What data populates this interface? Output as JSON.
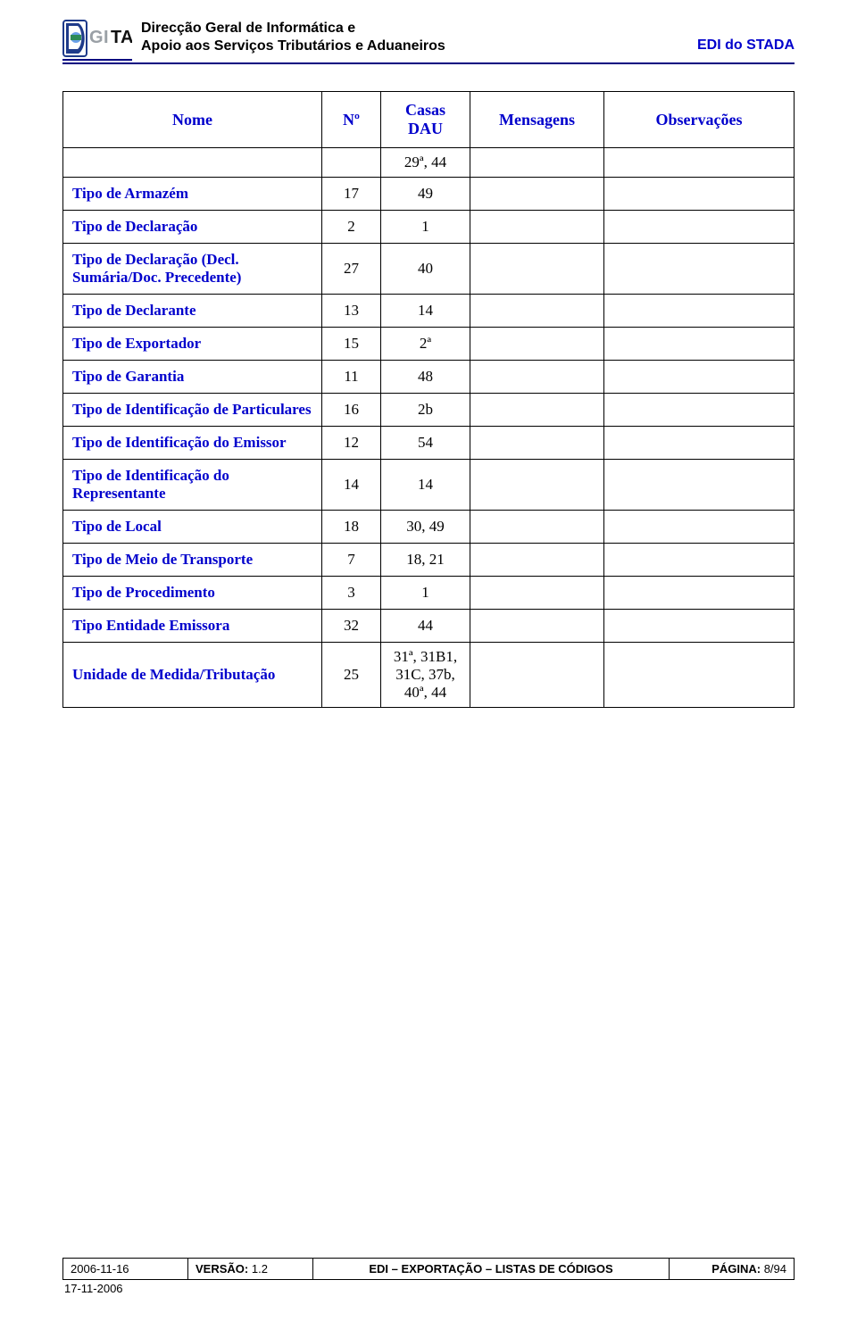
{
  "header": {
    "org_line1": "Direcção Geral de Informática e",
    "org_line2": "Apoio aos Serviços Tributários e Aduaneiros",
    "right": "EDI do STADA",
    "logo": {
      "blue": "#1e3a8a",
      "light_blue": "#6aa0e8",
      "green": "#2e8b57",
      "gray": "#9aa0a6",
      "black": "#111111"
    }
  },
  "table": {
    "headers": {
      "nome": "Nome",
      "no": "Nº",
      "casas": "Casas DAU",
      "mensagens": "Mensagens",
      "obs": "Observações"
    },
    "rows": [
      {
        "nome": "",
        "no": "",
        "casas": "29ª, 44",
        "mens": "",
        "obs": ""
      },
      {
        "nome": "Tipo de Armazém",
        "no": "17",
        "casas": "49",
        "mens": "",
        "obs": ""
      },
      {
        "nome": "Tipo de Declaração",
        "no": "2",
        "casas": "1",
        "mens": "",
        "obs": ""
      },
      {
        "nome": "Tipo de Declaração (Decl. Sumária/Doc. Precedente)",
        "no": "27",
        "casas": "40",
        "mens": "",
        "obs": ""
      },
      {
        "nome": "Tipo de Declarante",
        "no": "13",
        "casas": "14",
        "mens": "",
        "obs": ""
      },
      {
        "nome": "Tipo de Exportador",
        "no": "15",
        "casas": "2ª",
        "mens": "",
        "obs": ""
      },
      {
        "nome": "Tipo de Garantia",
        "no": "11",
        "casas": "48",
        "mens": "",
        "obs": ""
      },
      {
        "nome": "Tipo de Identificação de Particulares",
        "no": "16",
        "casas": "2b",
        "mens": "",
        "obs": ""
      },
      {
        "nome": "Tipo de Identificação do Emissor",
        "no": "12",
        "casas": "54",
        "mens": "",
        "obs": ""
      },
      {
        "nome": "Tipo de Identificação do Representante",
        "no": "14",
        "casas": "14",
        "mens": "",
        "obs": ""
      },
      {
        "nome": "Tipo de Local",
        "no": "18",
        "casas": "30, 49",
        "mens": "",
        "obs": ""
      },
      {
        "nome": "Tipo de Meio de Transporte",
        "no": "7",
        "casas": "18, 21",
        "mens": "",
        "obs": ""
      },
      {
        "nome": "Tipo de Procedimento",
        "no": "3",
        "casas": "1",
        "mens": "",
        "obs": ""
      },
      {
        "nome": "Tipo Entidade Emissora",
        "no": "32",
        "casas": "44",
        "mens": "",
        "obs": ""
      },
      {
        "nome": "Unidade de Medida/Tributação",
        "no": "25",
        "casas": "31ª, 31B1, 31C, 37b, 40ª, 44",
        "mens": "",
        "obs": ""
      }
    ]
  },
  "footer": {
    "date": "2006-11-16",
    "version_label": "VERSÃO:",
    "version_value": " 1.2",
    "center": "EDI – EXPORTAÇÃO – LISTAS DE CÓDIGOS",
    "page_label": "PÁGINA:",
    "page_value": " 8/94",
    "below_date": "17-11-2006"
  }
}
